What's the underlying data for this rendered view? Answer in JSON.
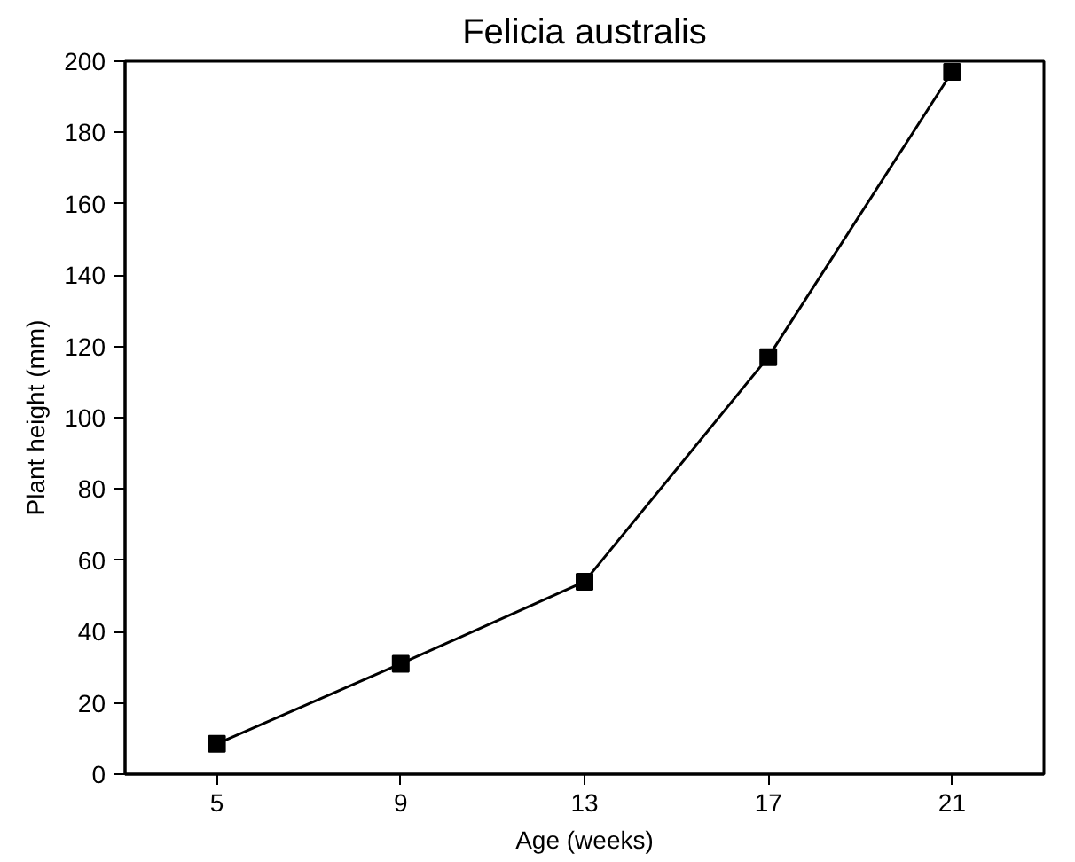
{
  "chart_data": {
    "type": "line",
    "title": "Felicia australis",
    "xlabel": "Age (weeks)",
    "ylabel": "Plant height (mm)",
    "x": [
      5,
      9,
      13,
      17,
      21
    ],
    "series": [
      {
        "color": "#000000",
        "values": [
          8.5,
          31,
          54,
          117,
          197
        ]
      }
    ],
    "xlim": [
      3,
      23
    ],
    "ylim": [
      0,
      200
    ],
    "xticks": [
      5,
      9,
      13,
      17,
      21
    ],
    "yticks": [
      0,
      20,
      40,
      60,
      80,
      100,
      120,
      140,
      160,
      180,
      200
    ],
    "marker": "square",
    "line_style": "solid",
    "grid": false
  }
}
